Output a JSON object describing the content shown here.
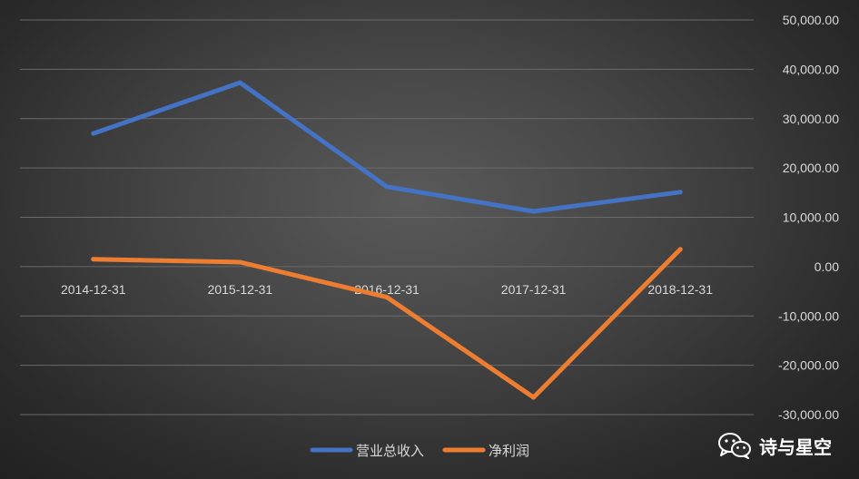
{
  "chart_data": {
    "type": "line",
    "categories": [
      "2014-12-31",
      "2015-12-31",
      "2016-12-31",
      "2017-12-31",
      "2018-12-31"
    ],
    "series": [
      {
        "name": "营业总收入",
        "values": [
          27000,
          37300,
          16200,
          11200,
          15100
        ],
        "color": "#4472c4"
      },
      {
        "name": "净利润",
        "values": [
          1500,
          900,
          -6200,
          -26500,
          3500
        ],
        "color": "#ed7d31"
      }
    ],
    "y_ticks": [
      "50,000.00",
      "40,000.00",
      "30,000.00",
      "20,000.00",
      "10,000.00",
      "0.00",
      "-10,000.00",
      "-20,000.00",
      "-30,000.00"
    ],
    "ylim": [
      -30000,
      50000
    ],
    "y_axis_side": "right",
    "grid": true,
    "legend_position": "bottom"
  },
  "watermark": {
    "text": "诗与星空",
    "icon": "wechat-icon"
  }
}
